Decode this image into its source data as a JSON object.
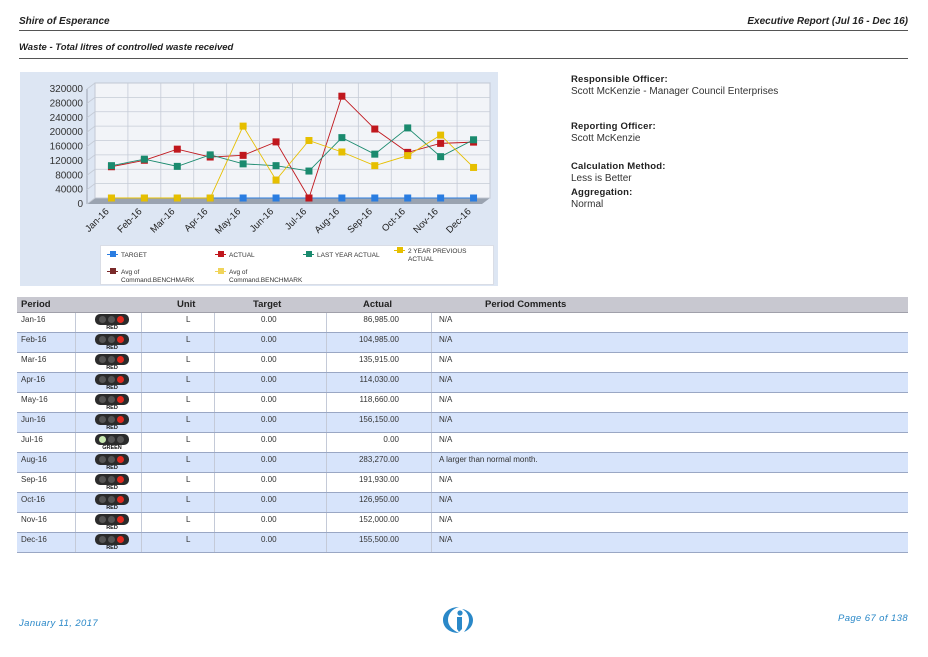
{
  "header": {
    "organisation": "Shire of Esperance",
    "report_title": "Executive Report (Jul 16 - Dec 16)",
    "subtitle": "Waste - Total litres of controlled waste received"
  },
  "info": {
    "responsible_officer_label": "Responsible Officer:",
    "responsible_officer": "Scott McKenzie - Manager Council Enterprises",
    "reporting_officer_label": "Reporting Officer:",
    "reporting_officer": "Scott McKenzie",
    "calculation_method_label": "Calculation Method:",
    "calculation_method": "Less is Better",
    "aggregation_label": "Aggregation:",
    "aggregation": "Normal"
  },
  "chart_data": {
    "type": "line",
    "categories": [
      "Jan-16",
      "Feb-16",
      "Mar-16",
      "Apr-16",
      "May-16",
      "Jun-16",
      "Jul-16",
      "Aug-16",
      "Sep-16",
      "Oct-16",
      "Nov-16",
      "Dec-16"
    ],
    "y_ticks": [
      "320000",
      "280000",
      "240000",
      "200000",
      "160000",
      "120000",
      "80000",
      "40000",
      "0"
    ],
    "ylim": [
      0,
      320000
    ],
    "grid": true,
    "legend_position": "bottom",
    "series": [
      {
        "name": "TARGET",
        "color": "#2a7de1",
        "values": [
          0,
          0,
          0,
          0,
          0,
          0,
          0,
          0,
          0,
          0,
          0,
          0
        ]
      },
      {
        "name": "ACTUAL",
        "color": "#c0171d",
        "values": [
          86985,
          104985,
          135915,
          114030,
          118660,
          156150,
          0,
          283270,
          191930,
          126950,
          152000,
          155500
        ]
      },
      {
        "name": "LAST YEAR ACTUAL",
        "color": "#1a8a6e",
        "values": [
          90000,
          108000,
          88000,
          120000,
          95000,
          90000,
          75000,
          168000,
          122000,
          195000,
          115000,
          162000
        ]
      },
      {
        "name": "2 YEAR PREVIOUS ACTUAL",
        "color": "#e6bf00",
        "values": [
          0,
          0,
          0,
          0,
          200000,
          50000,
          160000,
          128000,
          90000,
          118000,
          175000,
          85000
        ]
      }
    ],
    "legend": [
      {
        "label": "TARGET",
        "color": "#2a7de1"
      },
      {
        "label": "ACTUAL",
        "color": "#c0171d"
      },
      {
        "label": "LAST YEAR ACTUAL",
        "color": "#1a8a6e"
      },
      {
        "label": "2 YEAR PREVIOUS ACTUAL",
        "color": "#e6bf00"
      },
      {
        "label": "Avg of Command.BENCHMARK",
        "color": "#7a2a2a"
      },
      {
        "label": "Avg of Command.BENCHMARK",
        "color": "#f0d45a"
      }
    ]
  },
  "table": {
    "headers": {
      "period": "Period",
      "unit": "Unit",
      "target": "Target",
      "actual": "Actual",
      "comments": "Period Comments"
    },
    "rows": [
      {
        "period": "Jan-16",
        "status": "RED",
        "unit": "L",
        "target": "0.00",
        "actual": "86,985.00",
        "comment": "N/A"
      },
      {
        "period": "Feb-16",
        "status": "RED",
        "unit": "L",
        "target": "0.00",
        "actual": "104,985.00",
        "comment": "N/A"
      },
      {
        "period": "Mar-16",
        "status": "RED",
        "unit": "L",
        "target": "0.00",
        "actual": "135,915.00",
        "comment": "N/A"
      },
      {
        "period": "Apr-16",
        "status": "RED",
        "unit": "L",
        "target": "0.00",
        "actual": "114,030.00",
        "comment": "N/A"
      },
      {
        "period": "May-16",
        "status": "RED",
        "unit": "L",
        "target": "0.00",
        "actual": "118,660.00",
        "comment": "N/A"
      },
      {
        "period": "Jun-16",
        "status": "RED",
        "unit": "L",
        "target": "0.00",
        "actual": "156,150.00",
        "comment": "N/A"
      },
      {
        "period": "Jul-16",
        "status": "GREEN",
        "unit": "L",
        "target": "0.00",
        "actual": "0.00",
        "comment": "N/A"
      },
      {
        "period": "Aug-16",
        "status": "RED",
        "unit": "L",
        "target": "0.00",
        "actual": "283,270.00",
        "comment": "A larger than normal month."
      },
      {
        "period": "Sep-16",
        "status": "RED",
        "unit": "L",
        "target": "0.00",
        "actual": "191,930.00",
        "comment": "N/A"
      },
      {
        "period": "Oct-16",
        "status": "RED",
        "unit": "L",
        "target": "0.00",
        "actual": "126,950.00",
        "comment": "N/A"
      },
      {
        "period": "Nov-16",
        "status": "RED",
        "unit": "L",
        "target": "0.00",
        "actual": "152,000.00",
        "comment": "N/A"
      },
      {
        "period": "Dec-16",
        "status": "RED",
        "unit": "L",
        "target": "0.00",
        "actual": "155,500.00",
        "comment": "N/A"
      }
    ]
  },
  "footer": {
    "date": "January 11, 2017",
    "page": "Page 67 of 138",
    "logo_icon": "info-logo-icon"
  }
}
